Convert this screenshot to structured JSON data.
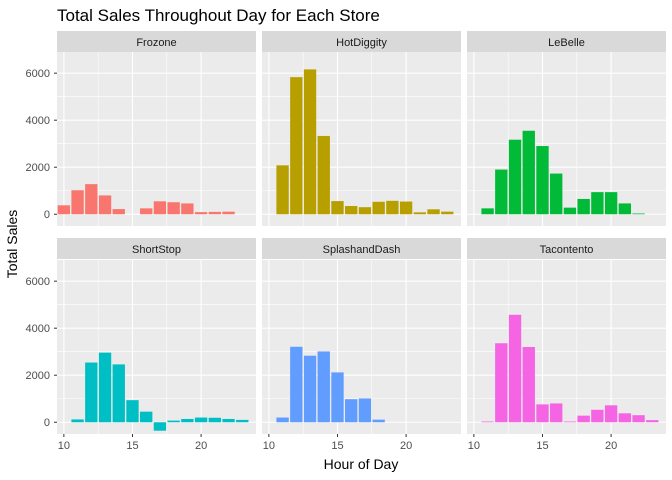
{
  "chart_data": {
    "type": "bar",
    "title": "Total Sales Throughout Day for Each Store",
    "xlabel": "Hour of Day",
    "ylabel": "Total Sales",
    "xlim": [
      9.5,
      24.0
    ],
    "ylim": [
      -500,
      6900
    ],
    "x_ticks": [
      10,
      15,
      20
    ],
    "y_ticks": [
      0,
      2000,
      4000,
      6000
    ],
    "grid": true,
    "facets": [
      {
        "name": "Frozone",
        "color": "#F8766D",
        "x": [
          10,
          11,
          12,
          13,
          14,
          15,
          16,
          17,
          18,
          19,
          20,
          21,
          22,
          23
        ],
        "values": [
          380,
          1020,
          1280,
          800,
          220,
          0,
          250,
          550,
          510,
          460,
          90,
          100,
          110,
          0
        ]
      },
      {
        "name": "HotDiggity",
        "color": "#B79F00",
        "x": [
          10,
          11,
          12,
          13,
          14,
          15,
          16,
          17,
          18,
          19,
          20,
          21,
          22,
          23
        ],
        "values": [
          0,
          2080,
          5830,
          6160,
          3330,
          560,
          350,
          300,
          530,
          570,
          540,
          80,
          210,
          110
        ]
      },
      {
        "name": "LeBelle",
        "color": "#00BA38",
        "x": [
          10,
          11,
          12,
          13,
          14,
          15,
          16,
          17,
          18,
          19,
          20,
          21,
          22,
          23
        ],
        "values": [
          0,
          250,
          1900,
          3170,
          3550,
          2900,
          1730,
          280,
          650,
          940,
          940,
          460,
          30,
          0
        ]
      },
      {
        "name": "ShortStop",
        "color": "#00BFC4",
        "x": [
          10,
          11,
          12,
          13,
          14,
          15,
          16,
          17,
          18,
          19,
          20,
          21,
          22,
          23
        ],
        "values": [
          0,
          120,
          2540,
          2960,
          2460,
          940,
          450,
          -360,
          70,
          140,
          200,
          190,
          140,
          100
        ]
      },
      {
        "name": "SplashandDash",
        "color": "#619CFF",
        "x": [
          10,
          11,
          12,
          13,
          14,
          15,
          16,
          17,
          18,
          19,
          20,
          21,
          22,
          23
        ],
        "values": [
          0,
          200,
          3210,
          2830,
          3010,
          2120,
          980,
          1010,
          110,
          0,
          0,
          0,
          0,
          0
        ]
      },
      {
        "name": "Tacontento",
        "color": "#F564E3",
        "x": [
          10,
          11,
          12,
          13,
          14,
          15,
          16,
          17,
          18,
          19,
          20,
          21,
          22,
          23
        ],
        "values": [
          0,
          30,
          3360,
          4570,
          3200,
          760,
          800,
          30,
          280,
          530,
          720,
          380,
          300,
          90
        ]
      }
    ]
  }
}
